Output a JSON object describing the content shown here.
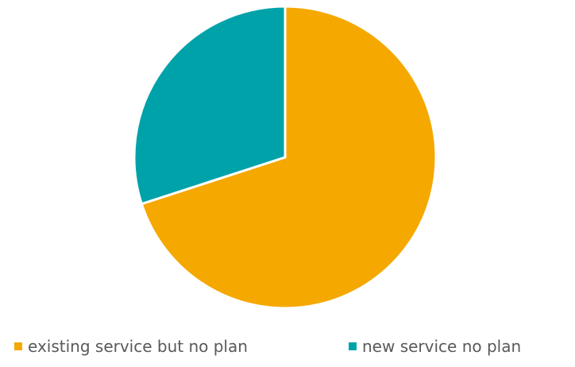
{
  "chart_data": {
    "type": "pie",
    "title": "",
    "series": [
      {
        "values": [
          70,
          30
        ]
      }
    ],
    "categories": [
      "existing service but no plan",
      "new service no plan"
    ],
    "colors": [
      "#F5A800",
      "#00A2AA"
    ],
    "start_angle_deg": 0,
    "direction": "clockwise",
    "legend_position": "bottom"
  },
  "legend": {
    "items": [
      {
        "label": "existing service but no plan",
        "color": "#F5A800"
      },
      {
        "label": "new service no plan",
        "color": "#00A2AA"
      }
    ]
  }
}
